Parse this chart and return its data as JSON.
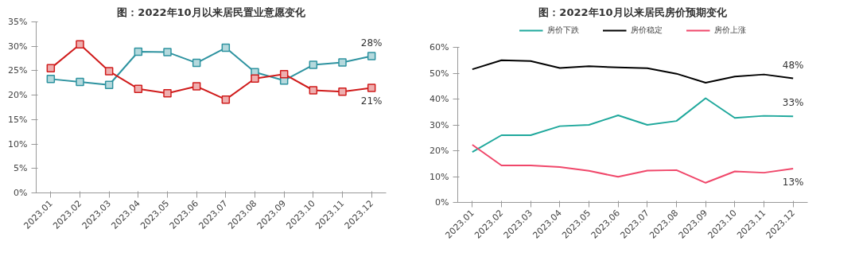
{
  "chart_data": [
    {
      "type": "line",
      "title": "图：2022年10月以来居民置业意愿变化",
      "categories": [
        "2023.01",
        "2023.02",
        "2023.03",
        "2023.04",
        "2023.05",
        "2023.06",
        "2023.07",
        "2023.08",
        "2023.09",
        "2023.10",
        "2023.11",
        "2023.12"
      ],
      "ylim": [
        0,
        35
      ],
      "yticks": [
        {
          "value": 0,
          "label": "0%"
        },
        {
          "value": 5,
          "label": "5%"
        },
        {
          "value": 10,
          "label": "10%"
        },
        {
          "value": 15,
          "label": "15%"
        },
        {
          "value": 20,
          "label": "20%"
        },
        {
          "value": 25,
          "label": "25%"
        },
        {
          "value": 30,
          "label": "30%"
        },
        {
          "value": 35,
          "label": "35%"
        }
      ],
      "marker": "square",
      "grid": false,
      "legend": false,
      "series": [
        {
          "color": "#2e93a0",
          "values": [
            23.3,
            22.7,
            22.1,
            28.9,
            28.8,
            26.6,
            29.7,
            24.7,
            23.0,
            26.2,
            26.7,
            28.0
          ],
          "value_labels": [
            null,
            null,
            null,
            null,
            null,
            null,
            null,
            null,
            null,
            null,
            null,
            "28%"
          ]
        },
        {
          "color": "#d01c1c",
          "values": [
            25.5,
            30.4,
            24.9,
            21.3,
            20.4,
            21.8,
            19.1,
            23.4,
            24.3,
            21.0,
            20.7,
            21.5
          ],
          "value_labels": [
            null,
            null,
            null,
            null,
            null,
            null,
            null,
            null,
            null,
            null,
            null,
            "21%"
          ]
        }
      ]
    },
    {
      "type": "line",
      "title": "图：2022年10月以来居民房价预期变化",
      "categories": [
        "2023.01",
        "2023.02",
        "2023.03",
        "2023.04",
        "2023.05",
        "2023.06",
        "2023.07",
        "2023.08",
        "2023.09",
        "2023.10",
        "2023.11",
        "2023.12"
      ],
      "ylim": [
        0,
        60
      ],
      "yticks": [
        {
          "value": 0,
          "label": "0%"
        },
        {
          "value": 10,
          "label": "10%"
        },
        {
          "value": 20,
          "label": "20%"
        },
        {
          "value": 30,
          "label": "30%"
        },
        {
          "value": 40,
          "label": "40%"
        },
        {
          "value": 50,
          "label": "50%"
        },
        {
          "value": 60,
          "label": "60%"
        }
      ],
      "marker": "none",
      "grid": false,
      "legend": "top",
      "series": [
        {
          "name": "房价下跌",
          "color": "#1fa89c",
          "values": [
            19.5,
            26.0,
            26.0,
            29.5,
            30.0,
            33.7,
            30.0,
            31.5,
            40.3,
            32.7,
            33.5,
            33.3
          ],
          "value_labels": [
            null,
            null,
            null,
            null,
            null,
            null,
            null,
            null,
            null,
            null,
            null,
            "33%"
          ]
        },
        {
          "name": "房价稳定",
          "color": "#000000",
          "values": [
            51.5,
            55.0,
            54.7,
            52.0,
            52.7,
            52.2,
            51.9,
            49.8,
            46.3,
            48.7,
            49.5,
            48.0
          ],
          "value_labels": [
            null,
            null,
            null,
            null,
            null,
            null,
            null,
            null,
            null,
            null,
            null,
            "48%"
          ]
        },
        {
          "name": "房价上涨",
          "color": "#f0476a",
          "values": [
            22.3,
            14.3,
            14.3,
            13.7,
            12.2,
            9.9,
            12.3,
            12.5,
            7.6,
            12.0,
            11.5,
            13.1
          ],
          "value_labels": [
            null,
            null,
            null,
            null,
            null,
            null,
            null,
            null,
            null,
            null,
            null,
            "13%"
          ]
        }
      ]
    }
  ]
}
